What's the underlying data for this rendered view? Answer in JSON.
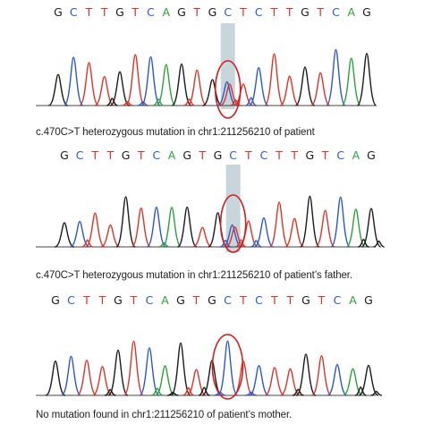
{
  "colors": {
    "A": "#2e9e3a",
    "C": "#2b57c9",
    "G": "#1a1a1a",
    "T": "#d8342a",
    "highlight": "#c8d6dc",
    "circle": "#cc1f1f"
  },
  "panels": [
    {
      "sequence": [
        "G",
        "C",
        "T",
        "T",
        "G",
        "T",
        "C",
        "A",
        "G",
        "T",
        "G",
        "C",
        "T",
        "C",
        "T",
        "T",
        "G",
        "T",
        "C",
        "A",
        "G"
      ],
      "caption": "c.470C>T heterozygous mutation in chr1:211256210 of patient",
      "highlight_index": 11,
      "heterozygous": true
    },
    {
      "sequence": [
        "G",
        "C",
        "T",
        "T",
        "G",
        "T",
        "C",
        "A",
        "G",
        "T",
        "G",
        "C",
        "T",
        "C",
        "T",
        "T",
        "G",
        "T",
        "C",
        "A",
        "G"
      ],
      "caption": "c.470C>T heterozygous mutation in chr1:211256210 of patient’s father.",
      "highlight_index": 11,
      "heterozygous": true
    },
    {
      "sequence": [
        "G",
        "C",
        "T",
        "T",
        "G",
        "T",
        "C",
        "A",
        "G",
        "T",
        "G",
        "C",
        "T",
        "C",
        "T",
        "T",
        "G",
        "T",
        "C",
        "A",
        "G"
      ],
      "caption": "No mutation found in chr1:211256210 of patient’s mother.",
      "highlight_index": 11,
      "heterozygous": false
    }
  ]
}
